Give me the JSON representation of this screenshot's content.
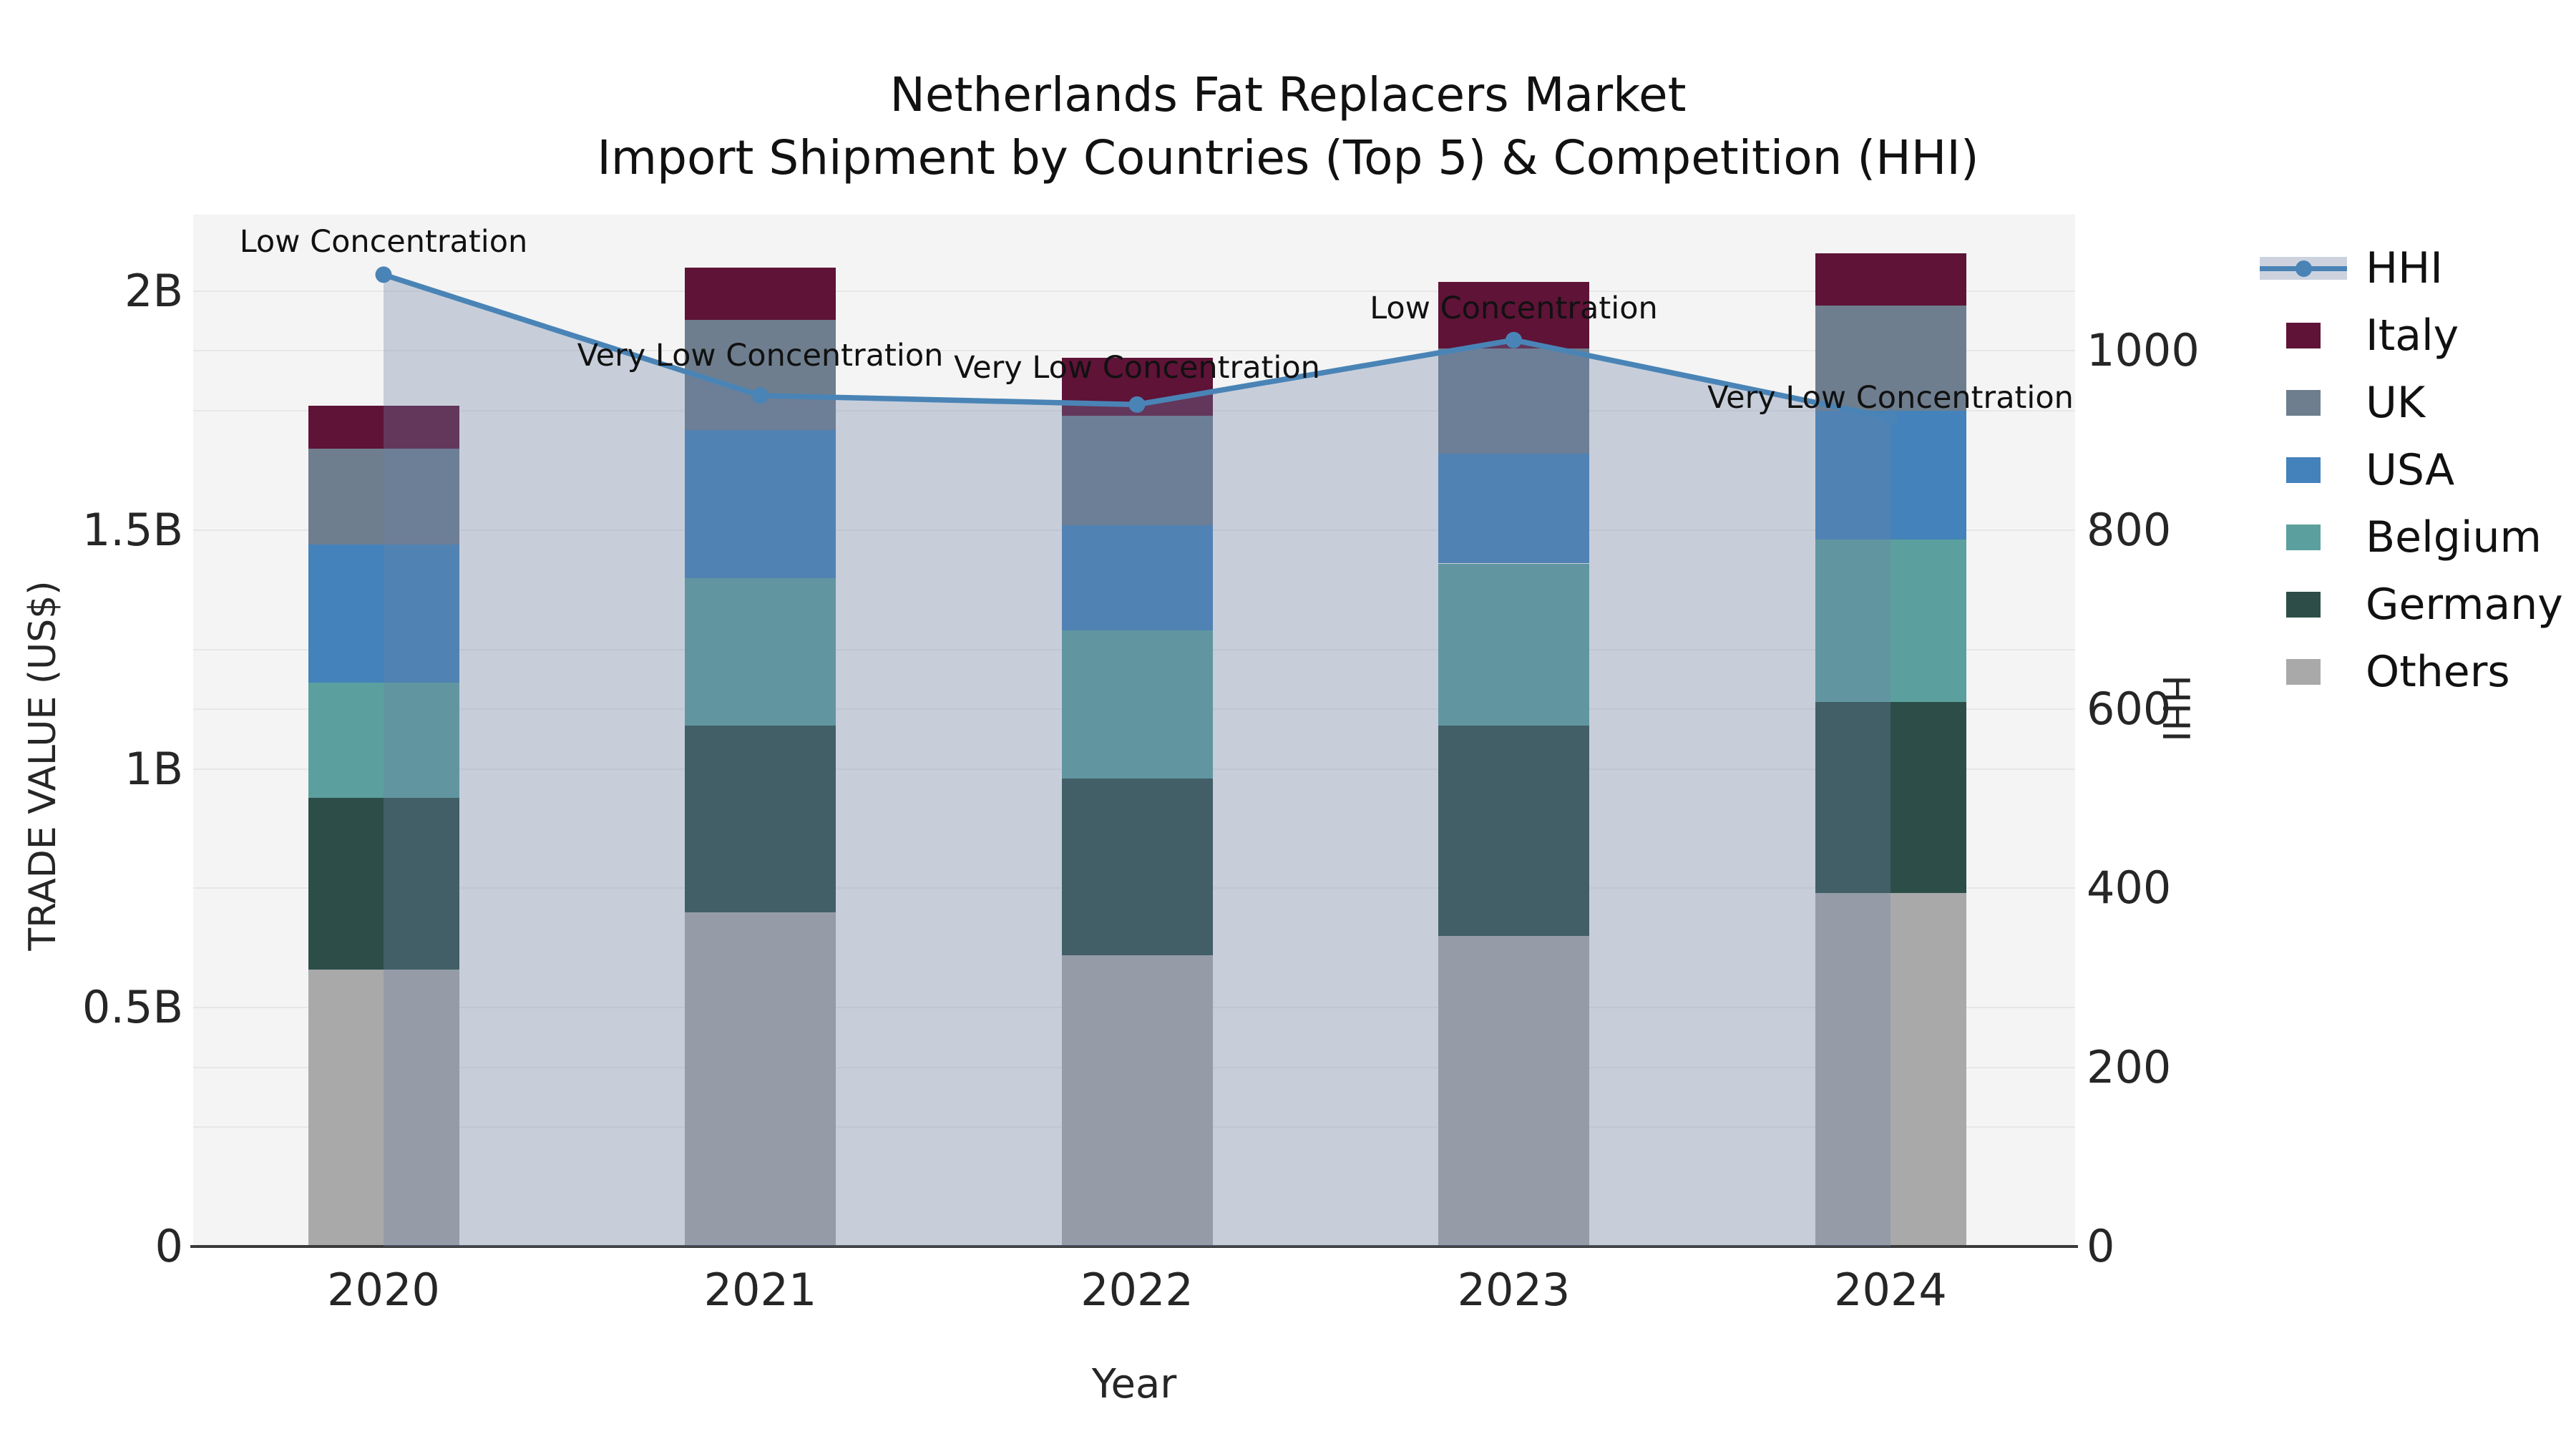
{
  "title": {
    "line1": "Netherlands Fat Replacers Market",
    "line2": "Import Shipment by Countries (Top 5) & Competition (HHI)"
  },
  "axis": {
    "x_label": "Year",
    "y_left_label": "TRADE VALUE (US$)",
    "y_right_label": "HHI",
    "y_left_ticks": [
      {
        "label": "0",
        "value": 0
      },
      {
        "label": "0.5B",
        "value": 0.5
      },
      {
        "label": "1B",
        "value": 1
      },
      {
        "label": "1.5B",
        "value": 1.5
      },
      {
        "label": "2B",
        "value": 2
      }
    ],
    "y_right_ticks": [
      {
        "label": "0",
        "value": 0
      },
      {
        "label": "200",
        "value": 200
      },
      {
        "label": "400",
        "value": 400
      },
      {
        "label": "600",
        "value": 600
      },
      {
        "label": "800",
        "value": 800
      },
      {
        "label": "1000",
        "value": 1000
      }
    ]
  },
  "chart_data": {
    "type": "stacked-bar+line-combo",
    "categories": [
      "2020",
      "2021",
      "2022",
      "2023",
      "2024"
    ],
    "bar_axis": "left",
    "bar_unit": "US$ billions",
    "ylim_left_billions": [
      0,
      2.16
    ],
    "ylim_right_hhi": [
      0,
      1152
    ],
    "grid": true,
    "plot_bg": "#f4f4f4",
    "series": [
      {
        "name": "Italy",
        "color": "#5F1337",
        "values": [
          0.09,
          0.11,
          0.12,
          0.14,
          0.11
        ]
      },
      {
        "name": "UK",
        "color": "#6E7E8E",
        "values": [
          0.2,
          0.23,
          0.23,
          0.22,
          0.22
        ]
      },
      {
        "name": "USA",
        "color": "#4482BB",
        "values": [
          0.29,
          0.31,
          0.22,
          0.23,
          0.27
        ]
      },
      {
        "name": "Belgium",
        "color": "#5BA09E",
        "values": [
          0.24,
          0.31,
          0.31,
          0.34,
          0.34
        ]
      },
      {
        "name": "Germany",
        "color": "#2D4E48",
        "values": [
          0.36,
          0.39,
          0.37,
          0.44,
          0.4
        ]
      },
      {
        "name": "Others",
        "color": "#A9A9A9",
        "values": [
          0.58,
          0.7,
          0.61,
          0.65,
          0.74
        ]
      }
    ],
    "stack_order_bottom_to_top": [
      "Others",
      "Germany",
      "Belgium",
      "USA",
      "UK",
      "Italy"
    ],
    "totals_billions": [
      1.76,
      2.05,
      1.86,
      2.02,
      2.08
    ],
    "line": {
      "name": "HHI",
      "axis": "right",
      "color": "#4A84B6",
      "area_fill": "rgba(110,132,168,0.33)",
      "marker": "circle",
      "values": [
        1085,
        950,
        940,
        1012,
        925
      ]
    },
    "annotations": [
      {
        "category": "2020",
        "text": "Low Concentration"
      },
      {
        "category": "2021",
        "text": "Very Low Concentration"
      },
      {
        "category": "2022",
        "text": "Very Low Concentration"
      },
      {
        "category": "2023",
        "text": "Low Concentration"
      },
      {
        "category": "2024",
        "text": "Very Low Concentration"
      }
    ],
    "legend": {
      "position": "right",
      "entries": [
        "HHI",
        "Italy",
        "UK",
        "USA",
        "Belgium",
        "Germany",
        "Others"
      ]
    }
  }
}
